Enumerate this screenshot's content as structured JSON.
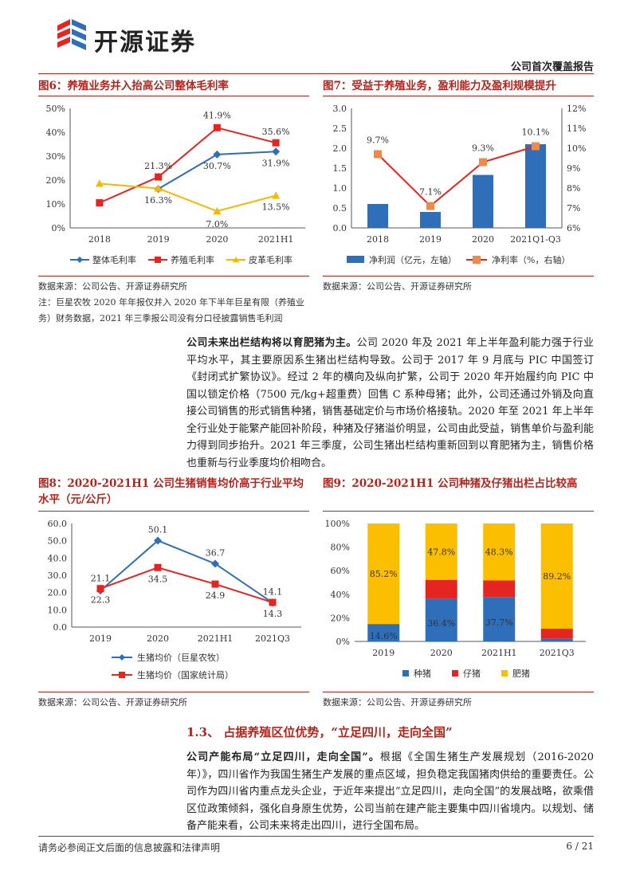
{
  "header": {
    "company_name": "开源证券",
    "report_type": "公司首次覆盖报告"
  },
  "fig6": {
    "title": "图6：养殖业务并入抬高公司整体毛利率",
    "source": "数据来源：公司公告、开源证券研究所",
    "note": "注：巨星农牧 2020 年年报仅并入 2020 年下半年巨星有限（养殖业务）财务数据，2021 年三季报公司没有分口径披露销售毛利润",
    "chart_data": {
      "type": "line",
      "categories": [
        "2018",
        "2019",
        "2020",
        "2021H1"
      ],
      "ylim": [
        0,
        50
      ],
      "yticks": [
        "0%",
        "10%",
        "20%",
        "30%",
        "40%",
        "50%"
      ],
      "series": [
        {
          "name": "整体毛利率",
          "color": "#2f6fba",
          "values": [
            null,
            16.3,
            30.7,
            31.9
          ],
          "labels": [
            "",
            "16.3%",
            "30.7%",
            "31.9%"
          ]
        },
        {
          "name": "养殖毛利率",
          "color": "#e52521",
          "values": [
            10.5,
            21.3,
            41.9,
            35.6
          ],
          "labels": [
            "",
            "21.3%",
            "41.9%",
            "35.6%"
          ]
        },
        {
          "name": "皮革毛利率",
          "color": "#f6b800",
          "values": [
            18.5,
            16.5,
            7.0,
            13.5
          ],
          "labels": [
            "",
            "",
            "7.0%",
            "13.5%"
          ]
        }
      ]
    }
  },
  "fig7": {
    "title": "图7：受益于养殖业务，盈利能力及盈利规模提升",
    "source": "数据来源：公司公告、开源证券研究所",
    "chart_data": {
      "type": "bar",
      "categories": [
        "2018",
        "2019",
        "2020",
        "2021Q1-Q3"
      ],
      "ylim_left": [
        0,
        3
      ],
      "yticks_left": [
        "0.0",
        "0.5",
        "1.0",
        "1.5",
        "2.0",
        "2.5",
        "3.0"
      ],
      "ylim_right": [
        6,
        12
      ],
      "yticks_right": [
        "6%",
        "7%",
        "8%",
        "9%",
        "10%",
        "11%",
        "12%"
      ],
      "series": [
        {
          "name": "净利润（亿元，左轴）",
          "color": "#2f6fba",
          "values": [
            0.6,
            0.4,
            1.33,
            2.1
          ]
        },
        {
          "name": "净利率（%，右轴）",
          "color": "#e52521",
          "marker_color": "#ef8a4d",
          "values": [
            9.7,
            7.1,
            9.3,
            10.1
          ],
          "labels": [
            "9.7%",
            "7.1%",
            "9.3%",
            "10.1%"
          ]
        }
      ]
    }
  },
  "paragraph1": {
    "lead": "公司未来出栏结构将以育肥猪为主。",
    "body": "公司 2020 年及 2021 年上半年盈利能力强于行业平均水平，其主要原因系生猪出栏结构导致。公司于 2017 年 9 月底与 PIC 中国签订《封闭式扩繁协议》。经过 2 年的横向及纵向扩繁，公司于 2020 年开始履约向 PIC 中国以锁定价格（7500 元/kg+超重费）回售 C 系种母猪；此外，公司还通过外销及向直接公司销售的形式销售种猪，销售基础定价与市场价格接轨。2020 年至 2021 年上半年全行业处于能繁产能回补阶段，种猪及仔猪溢价明显，公司由此受益，销售单价与盈利能力得到同步抬升。2021 年三季度，公司生猪出栏结构重新回到以育肥猪为主，销售价格也重新与行业季度均价相吻合。"
  },
  "fig8": {
    "title": "图8：2020-2021H1 公司生猪销售均价高于行业平均水平（元/公斤）",
    "source": "数据来源：公司公告、开源证券研究所",
    "chart_data": {
      "type": "line",
      "categories": [
        "2019",
        "2020",
        "2021H1",
        "2021Q3"
      ],
      "ylim": [
        0,
        60
      ],
      "yticks": [
        "0.0",
        "10.0",
        "20.0",
        "30.0",
        "40.0",
        "50.0",
        "60.0"
      ],
      "series": [
        {
          "name": "生猪均价（巨星农牧）",
          "color": "#2f6fba",
          "values": [
            21.1,
            50.1,
            36.7,
            14.1
          ],
          "labels": [
            "21.1",
            "50.1",
            "36.7",
            "14.1"
          ]
        },
        {
          "name": "生猪均价（国家统计局）",
          "color": "#e52521",
          "values": [
            22.3,
            34.5,
            24.9,
            14.3
          ],
          "labels": [
            "22.3",
            "34.5",
            "24.9",
            "14.3"
          ]
        }
      ]
    }
  },
  "fig9": {
    "title": "图9：2020-2021H1 公司种猪及仔猪出栏占比较高",
    "source": "数据来源：公司公告、开源证券研究所",
    "chart_data": {
      "type": "bar",
      "stacked": true,
      "categories": [
        "2019",
        "2020",
        "2021H1",
        "2021Q3"
      ],
      "ylim": [
        0,
        100
      ],
      "yticks": [
        "0%",
        "20%",
        "40%",
        "60%",
        "80%",
        "100%"
      ],
      "series": [
        {
          "name": "种猪",
          "color": "#2f6fba",
          "values": [
            14.6,
            36.4,
            37.7,
            2.2
          ],
          "labels": [
            "14.6%",
            "36.4%",
            "37.7%",
            "2.2%"
          ]
        },
        {
          "name": "仔猪",
          "color": "#e52521",
          "values": [
            0.2,
            15.8,
            14.0,
            8.6
          ],
          "labels": [
            "",
            "",
            "",
            ""
          ]
        },
        {
          "name": "肥猪",
          "color": "#fcbf00",
          "values": [
            85.2,
            47.8,
            48.3,
            89.2
          ],
          "labels": [
            "85.2%",
            "47.8%",
            "48.3%",
            "89.2%"
          ]
        }
      ]
    }
  },
  "section": {
    "heading": "1.3、 占据养殖区位优势，“立足四川，走向全国”"
  },
  "paragraph2": {
    "lead": "公司产能布局“立足四川，走向全国”。",
    "body": "根据《全国生猪生产发展规划（2016-2020年）》，四川省作为我国生猪生产发展的重点区域，担负稳定我国猪肉供给的重要责任。公司作为四川省内重点龙头企业，于近年来提出“立足四川，走向全国”的发展战略，欲乘借区位政策倾斜，强化自身原生优势，公司当前在建产能主要集中四川省境内。以规划、储备产能来看，公司未来将走出四川，进行全国布局。"
  },
  "footer": {
    "disclaimer": "请务必参阅正文后面的信息披露和法律声明",
    "page": "6 / 21"
  }
}
